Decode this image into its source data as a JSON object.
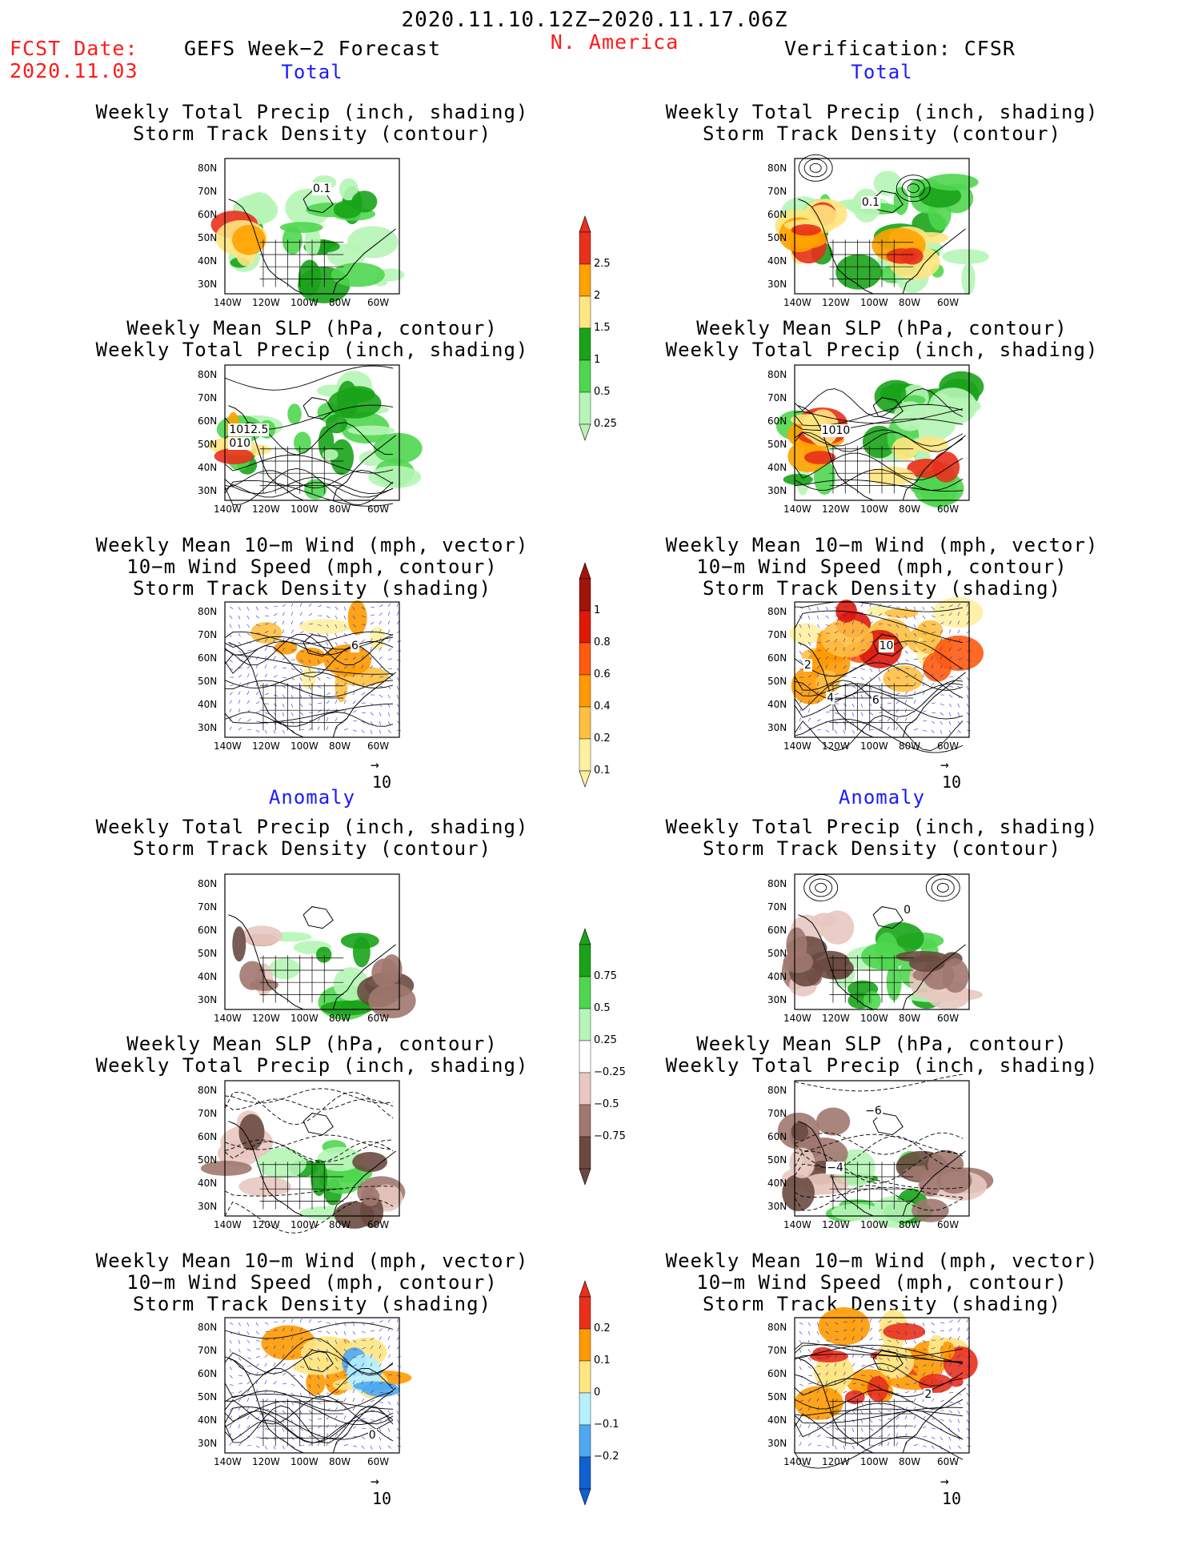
{
  "header": {
    "date_range": "2020.11.10.12Z−2020.11.17.06Z",
    "fcst_label": "FCST Date:",
    "fcst_date": "2020.11.03",
    "forecast_title": "GEFS Week−2 Forecast",
    "region": "N. America",
    "verification": "Verification: CFSR"
  },
  "sections": {
    "total": "Total",
    "anomaly": "Anomaly"
  },
  "panel_titles": {
    "precip_track": [
      "Weekly Total Precip (inch, shading)",
      "Storm Track Density (contour)"
    ],
    "slp_precip": [
      "Weekly Mean SLP (hPa, contour)",
      "Weekly Total Precip (inch, shading)"
    ],
    "wind_track": [
      "Weekly Mean 10−m Wind (mph, vector)",
      "10−m Wind Speed (mph, contour)",
      "Storm Track Density (shading)"
    ]
  },
  "axes": {
    "lat_ticks": [
      "80N",
      "70N",
      "60N",
      "50N",
      "40N",
      "30N"
    ],
    "lon_ticks": [
      "140W",
      "120W",
      "100W",
      "80W",
      "60W"
    ]
  },
  "vector_ref": "10",
  "contour_labels": {
    "fc_total_precip": "0.1",
    "ob_total_precip": "0.1",
    "fc_total_slp_a": "1012.5",
    "fc_total_slp_b": "010",
    "ob_total_slp": "1010",
    "fc_total_wind": "6",
    "ob_total_wind_a": "10",
    "ob_total_wind_b": "2",
    "ob_total_wind_c": "4",
    "ob_total_wind_d": "6",
    "ob_anom_precip": "0",
    "ob_anom_slp": "−4",
    "ob_anom_slp_b": "−6",
    "fc_anom_wind": "0",
    "ob_anom_wind": "2"
  },
  "colorbars": {
    "precip_total": {
      "labels": [
        "2.5",
        "2",
        "1.5",
        "1",
        "0.5",
        "0.25"
      ],
      "colors": [
        "#e8301c",
        "#ffa200",
        "#ffe680",
        "#1aa31a",
        "#4fd64f",
        "#b6f5b6"
      ]
    },
    "track_total": {
      "labels": [
        "1",
        "0.8",
        "0.6",
        "0.4",
        "0.2",
        "0.1"
      ],
      "colors": [
        "#a0140a",
        "#e0180a",
        "#ff5a10",
        "#ff9a00",
        "#ffc040",
        "#fff0a0"
      ]
    },
    "precip_anom": {
      "labels": [
        "0.75",
        "0.5",
        "0.25",
        "−0.25",
        "−0.5",
        "−0.75"
      ],
      "colors": [
        "#1aa31a",
        "#4fd64f",
        "#b6f5b6",
        "#ffffff",
        "#e8c8c0",
        "#a07870",
        "#6a4a40"
      ]
    },
    "track_anom": {
      "labels": [
        "0.2",
        "0.1",
        "0",
        "−0.1",
        "−0.2"
      ],
      "colors": [
        "#e8301c",
        "#ff9a00",
        "#ffe680",
        "#b6f0ff",
        "#50a8f0",
        "#1060d0"
      ]
    }
  }
}
